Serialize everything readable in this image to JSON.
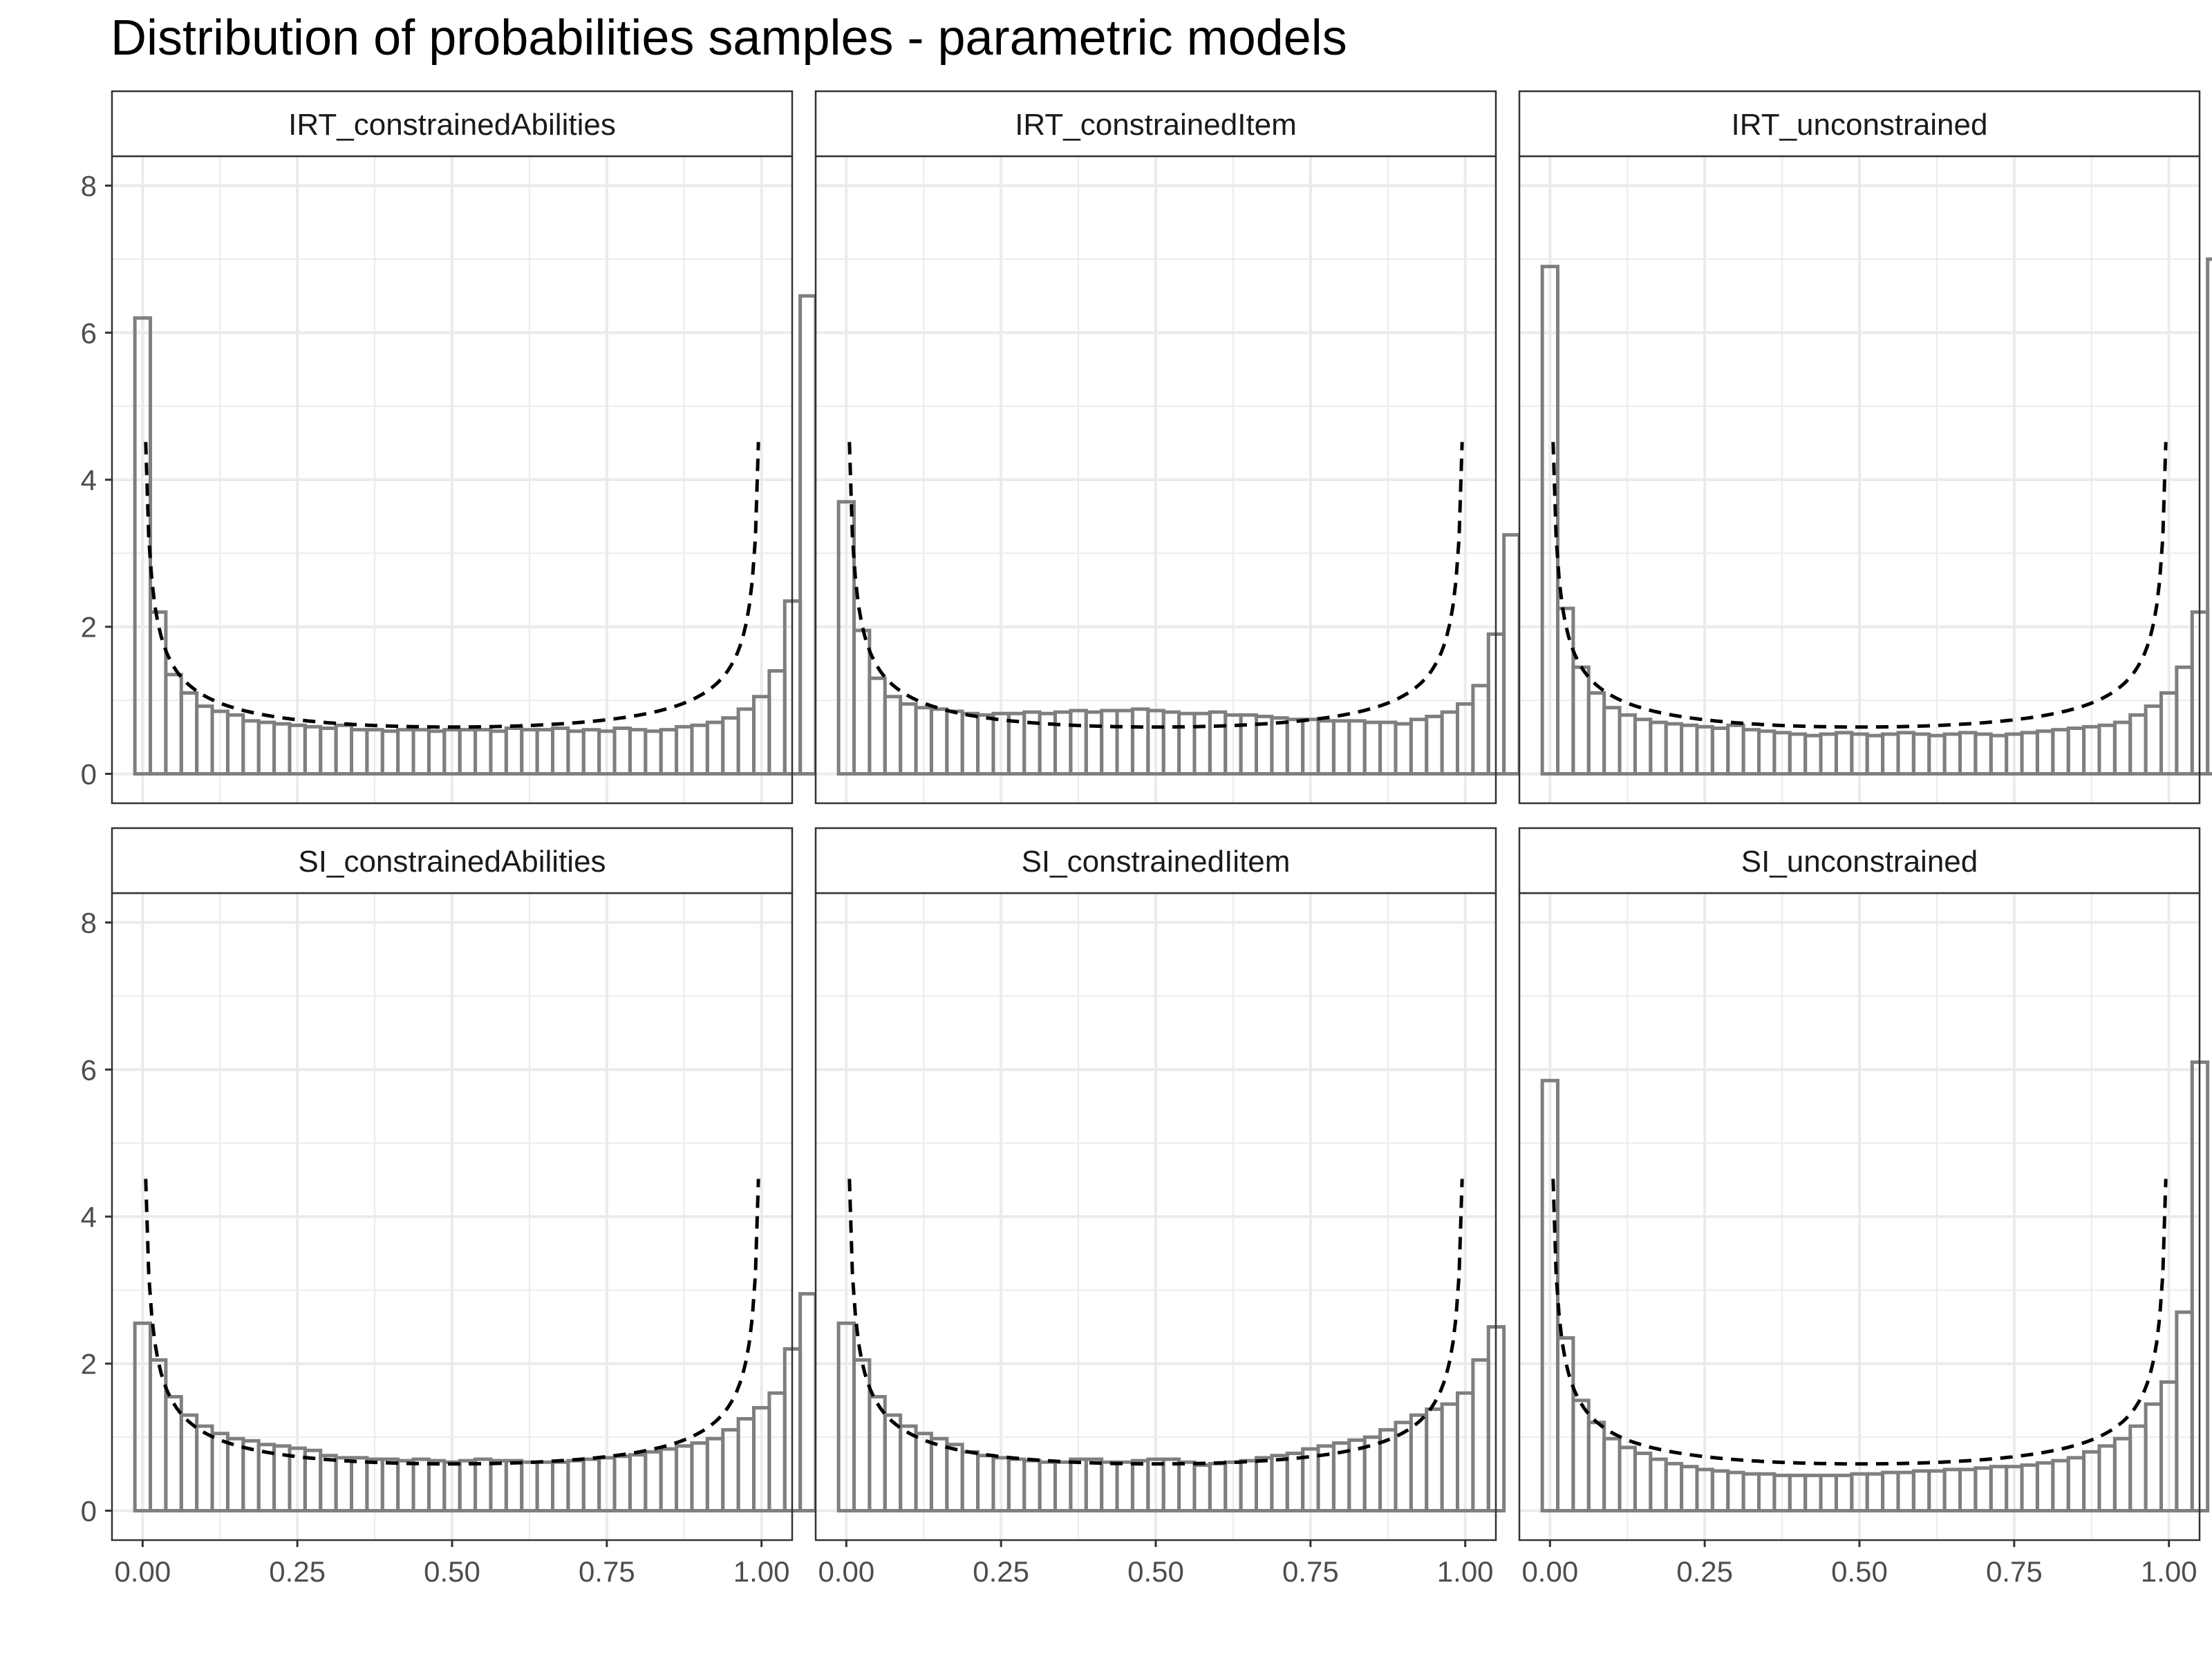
{
  "chart_data": {
    "title": "Distribution of probabilities samples - parametric models",
    "type": "histogram",
    "xlabel": "",
    "ylabel": "",
    "xlim": [
      0,
      1
    ],
    "ylim": [
      0,
      8
    ],
    "x_ticks": [
      "0.00",
      "0.25",
      "0.50",
      "0.75",
      "1.00"
    ],
    "y_ticks": [
      "0",
      "2",
      "4",
      "6",
      "8"
    ],
    "grid": true,
    "bin_width": 0.025,
    "reference_curve": {
      "style": "dashed",
      "a": 0.5,
      "b": 0.5
    },
    "colors": {
      "bars": "#7f7f7f",
      "curve": "#000000",
      "grid": "#ebebeb",
      "strip": "#ffffff",
      "panel_border": "#333333"
    },
    "panels": [
      {
        "name": "IRT_constrainedAbilities",
        "values": [
          6.2,
          2.2,
          1.35,
          1.1,
          0.92,
          0.85,
          0.8,
          0.72,
          0.7,
          0.68,
          0.66,
          0.64,
          0.62,
          0.66,
          0.6,
          0.6,
          0.58,
          0.6,
          0.6,
          0.58,
          0.6,
          0.6,
          0.6,
          0.58,
          0.62,
          0.6,
          0.6,
          0.62,
          0.58,
          0.6,
          0.58,
          0.62,
          0.6,
          0.58,
          0.6,
          0.64,
          0.66,
          0.7,
          0.76,
          0.88,
          1.05,
          1.4,
          2.35,
          6.5
        ]
      },
      {
        "name": "IRT_constrainedItem",
        "values": [
          3.7,
          1.95,
          1.3,
          1.05,
          0.95,
          0.9,
          0.88,
          0.85,
          0.82,
          0.8,
          0.82,
          0.82,
          0.84,
          0.82,
          0.84,
          0.86,
          0.84,
          0.86,
          0.86,
          0.88,
          0.86,
          0.84,
          0.82,
          0.82,
          0.84,
          0.8,
          0.8,
          0.78,
          0.76,
          0.74,
          0.74,
          0.72,
          0.72,
          0.72,
          0.7,
          0.7,
          0.68,
          0.74,
          0.78,
          0.84,
          0.95,
          1.2,
          1.9,
          3.25
        ]
      },
      {
        "name": "IRT_unconstrained",
        "values": [
          6.9,
          2.25,
          1.45,
          1.1,
          0.9,
          0.8,
          0.74,
          0.7,
          0.68,
          0.66,
          0.64,
          0.62,
          0.66,
          0.6,
          0.58,
          0.56,
          0.54,
          0.52,
          0.54,
          0.56,
          0.54,
          0.52,
          0.54,
          0.56,
          0.54,
          0.52,
          0.54,
          0.56,
          0.54,
          0.52,
          0.54,
          0.56,
          0.58,
          0.6,
          0.62,
          0.64,
          0.66,
          0.7,
          0.8,
          0.92,
          1.1,
          1.45,
          2.2,
          7.0
        ]
      },
      {
        "name": "SI_constrainedAbilities",
        "values": [
          2.55,
          2.05,
          1.55,
          1.3,
          1.15,
          1.05,
          0.98,
          0.95,
          0.9,
          0.88,
          0.85,
          0.82,
          0.75,
          0.72,
          0.72,
          0.7,
          0.7,
          0.68,
          0.7,
          0.68,
          0.66,
          0.68,
          0.7,
          0.68,
          0.68,
          0.66,
          0.66,
          0.66,
          0.68,
          0.7,
          0.72,
          0.74,
          0.76,
          0.8,
          0.84,
          0.88,
          0.92,
          0.98,
          1.1,
          1.25,
          1.4,
          1.6,
          2.2,
          2.95
        ]
      },
      {
        "name": "SI_constrainedIitem",
        "values": [
          2.55,
          2.05,
          1.55,
          1.3,
          1.15,
          1.05,
          0.98,
          0.9,
          0.8,
          0.75,
          0.72,
          0.7,
          0.68,
          0.66,
          0.66,
          0.7,
          0.7,
          0.66,
          0.66,
          0.68,
          0.7,
          0.7,
          0.66,
          0.62,
          0.64,
          0.66,
          0.68,
          0.72,
          0.75,
          0.78,
          0.84,
          0.88,
          0.92,
          0.96,
          1.0,
          1.1,
          1.2,
          1.3,
          1.38,
          1.45,
          1.6,
          2.05,
          2.5
        ]
      },
      {
        "name": "SI_unconstrained",
        "values": [
          5.85,
          2.35,
          1.5,
          1.2,
          0.98,
          0.86,
          0.78,
          0.7,
          0.64,
          0.6,
          0.56,
          0.54,
          0.52,
          0.5,
          0.5,
          0.48,
          0.48,
          0.48,
          0.48,
          0.48,
          0.5,
          0.5,
          0.52,
          0.52,
          0.54,
          0.54,
          0.56,
          0.56,
          0.58,
          0.6,
          0.6,
          0.62,
          0.65,
          0.68,
          0.72,
          0.8,
          0.88,
          0.98,
          1.15,
          1.45,
          1.75,
          2.7,
          6.1
        ]
      }
    ]
  }
}
